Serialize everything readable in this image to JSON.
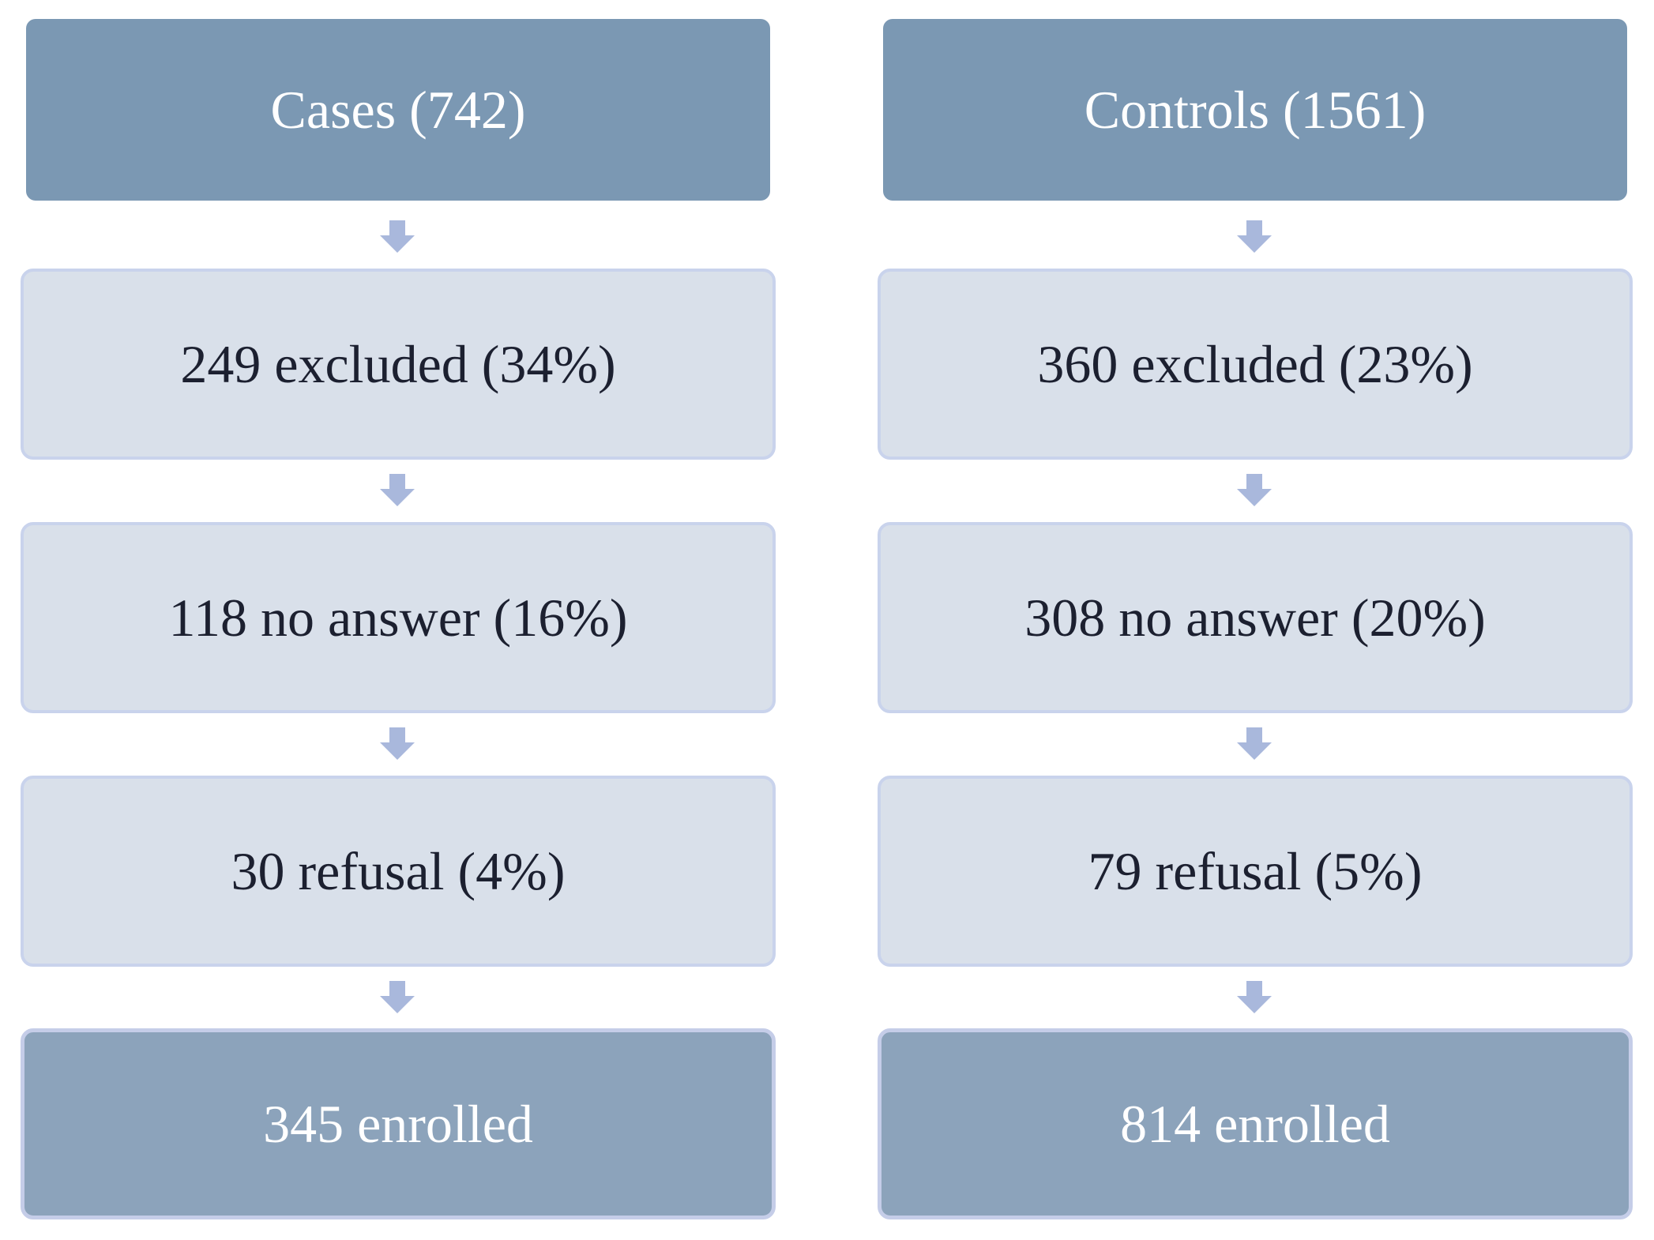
{
  "columns": [
    {
      "header": "Cases (742)",
      "steps": [
        "249 excluded (34%)",
        "118 no answer (16%)",
        "30 refusal (4%)"
      ],
      "result": "345 enrolled"
    },
    {
      "header": "Controls (1561)",
      "steps": [
        "360 excluded (23%)",
        "308 no answer (20%)",
        "79 refusal (5%)"
      ],
      "result": "814 enrolled"
    }
  ]
}
